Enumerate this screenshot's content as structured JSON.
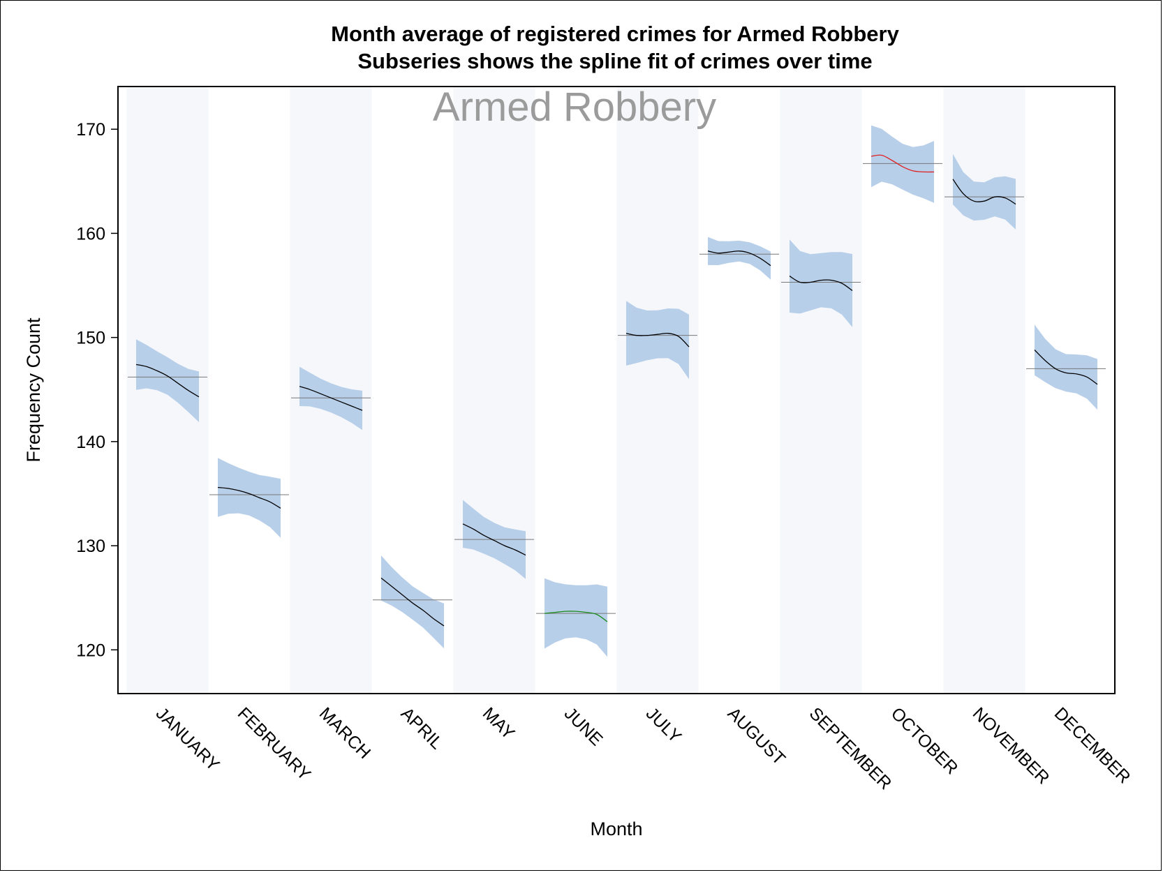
{
  "chart_data": {
    "type": "line",
    "title": "Month average of registered crimes for Armed Robbery",
    "subtitle": "Subseries shows the spline fit of crimes over time",
    "panel_label": "Armed Robbery",
    "xlabel": "Month",
    "ylabel": "Frequency Count",
    "categories": [
      "JANUARY",
      "FEBRUARY",
      "MARCH",
      "APRIL",
      "MAY",
      "JUNE",
      "JULY",
      "AUGUST",
      "SEPTEMBER",
      "OCTOBER",
      "NOVEMBER",
      "DECEMBER"
    ],
    "ylim": [
      115.8,
      174.1
    ],
    "yticks": [
      120,
      130,
      140,
      150,
      160,
      170
    ],
    "grid": false,
    "alternating_bands": true,
    "colors": {
      "band": "#f5f7fb",
      "ci_fill": "#b8cfea",
      "spline_default": "#000000",
      "spline_high": "#e02020",
      "spline_low": "#1a8a1a",
      "mean_line": "#777777"
    },
    "series": [
      {
        "month": "JANUARY",
        "mean": 146.2,
        "spline": [
          147.4,
          147.2,
          146.8,
          146.3,
          145.6,
          144.9,
          144.3
        ],
        "ci_half_width": 1.8,
        "color_class": "default"
      },
      {
        "month": "FEBRUARY",
        "mean": 134.9,
        "spline": [
          135.6,
          135.5,
          135.3,
          135.0,
          134.6,
          134.2,
          133.6
        ],
        "ci_half_width": 2.1,
        "color_class": "default"
      },
      {
        "month": "MARCH",
        "mean": 144.2,
        "spline": [
          145.3,
          145.0,
          144.6,
          144.2,
          143.8,
          143.4,
          143.0
        ],
        "ci_half_width": 1.4,
        "color_class": "default"
      },
      {
        "month": "APRIL",
        "mean": 124.8,
        "spline": [
          126.9,
          126.1,
          125.3,
          124.5,
          123.8,
          123.0,
          122.3
        ],
        "ci_half_width": 1.6,
        "color_class": "default"
      },
      {
        "month": "MAY",
        "mean": 130.6,
        "spline": [
          132.1,
          131.6,
          131.0,
          130.5,
          130.0,
          129.6,
          129.1
        ],
        "ci_half_width": 1.7,
        "color_class": "default"
      },
      {
        "month": "JUNE",
        "mean": 123.5,
        "spline": [
          123.5,
          123.6,
          123.7,
          123.7,
          123.6,
          123.4,
          122.7
        ],
        "ci_half_width": 2.5,
        "color_class": "low"
      },
      {
        "month": "JULY",
        "mean": 150.2,
        "spline": [
          150.4,
          150.2,
          150.2,
          150.3,
          150.4,
          150.1,
          149.1
        ],
        "ci_half_width": 2.3,
        "color_class": "default"
      },
      {
        "month": "AUGUST",
        "mean": 158.0,
        "spline": [
          158.3,
          158.1,
          158.2,
          158.3,
          158.1,
          157.6,
          156.9
        ],
        "ci_half_width": 1.0,
        "color_class": "default"
      },
      {
        "month": "SEPTEMBER",
        "mean": 155.3,
        "spline": [
          155.9,
          155.3,
          155.3,
          155.5,
          155.5,
          155.2,
          154.5
        ],
        "ci_half_width": 2.6,
        "color_class": "default"
      },
      {
        "month": "OCTOBER",
        "mean": 166.7,
        "spline": [
          167.4,
          167.5,
          167.0,
          166.4,
          166.0,
          165.9,
          165.9
        ],
        "ci_half_width": 2.2,
        "color_class": "high"
      },
      {
        "month": "NOVEMBER",
        "mean": 163.5,
        "spline": [
          165.2,
          163.8,
          163.1,
          163.1,
          163.5,
          163.4,
          162.8
        ],
        "ci_half_width": 1.8,
        "color_class": "default"
      },
      {
        "month": "DECEMBER",
        "mean": 147.0,
        "spline": [
          148.8,
          147.8,
          147.0,
          146.6,
          146.5,
          146.2,
          145.5
        ],
        "ci_half_width": 1.8,
        "color_class": "default"
      }
    ]
  }
}
